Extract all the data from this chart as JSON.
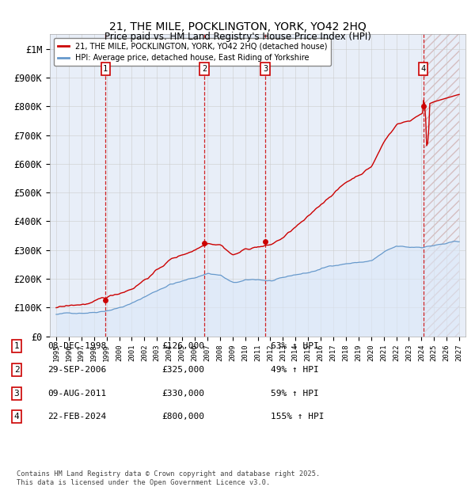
{
  "title": "21, THE MILE, POCKLINGTON, YORK, YO42 2HQ",
  "subtitle": "Price paid vs. HM Land Registry's House Price Index (HPI)",
  "xlim": [
    1994.5,
    2027.5
  ],
  "ylim": [
    0,
    1050000
  ],
  "yticks": [
    0,
    100000,
    200000,
    300000,
    400000,
    500000,
    600000,
    700000,
    800000,
    900000,
    1000000
  ],
  "ytick_labels": [
    "£0",
    "£100K",
    "£200K",
    "£300K",
    "£400K",
    "£500K",
    "£600K",
    "£700K",
    "£800K",
    "£900K",
    "£1M"
  ],
  "purchases": [
    {
      "num": 1,
      "date": "08-DEC-1998",
      "year": 1998.92,
      "price": 126000,
      "hpi_pct": "63% ↑ HPI"
    },
    {
      "num": 2,
      "date": "29-SEP-2006",
      "year": 2006.75,
      "price": 325000,
      "hpi_pct": "49% ↑ HPI"
    },
    {
      "num": 3,
      "date": "09-AUG-2011",
      "year": 2011.61,
      "price": 330000,
      "hpi_pct": "59% ↑ HPI"
    },
    {
      "num": 4,
      "date": "22-FEB-2024",
      "year": 2024.14,
      "price": 800000,
      "hpi_pct": "155% ↑ HPI"
    }
  ],
  "red_line_color": "#cc0000",
  "blue_line_color": "#6699cc",
  "blue_fill_color": "#dce8f8",
  "grid_color": "#cccccc",
  "bg_color": "#e8eef8",
  "legend_line1": "21, THE MILE, POCKLINGTON, YORK, YO42 2HQ (detached house)",
  "legend_line2": "HPI: Average price, detached house, East Riding of Yorkshire",
  "footer": "Contains HM Land Registry data © Crown copyright and database right 2025.\nThis data is licensed under the Open Government Licence v3.0."
}
